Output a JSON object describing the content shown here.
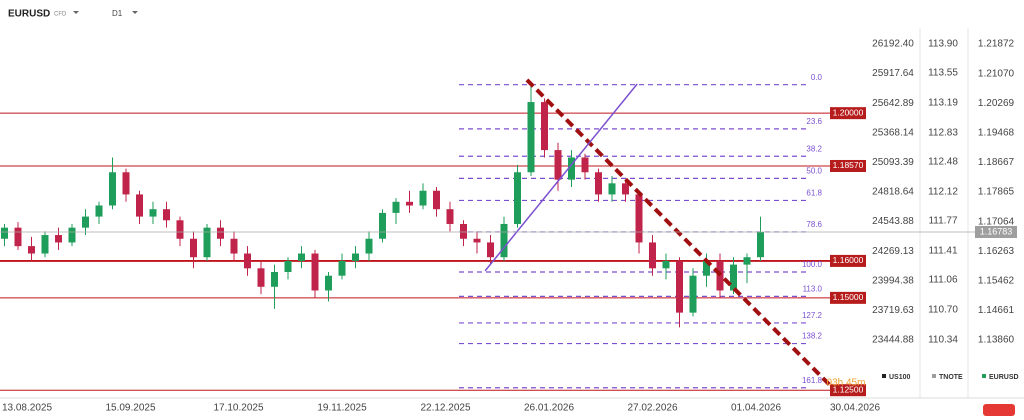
{
  "chart_data": {
    "type": "candlestick",
    "symbol": "EURUSD",
    "instrument_type": "CFD",
    "timeframe": "D1",
    "up_color": "#1e9e5a",
    "down_color": "#c0244a",
    "x": [
      -5,
      -2,
      1,
      4,
      7,
      10,
      13,
      16,
      19,
      22,
      25,
      28,
      31,
      34,
      37,
      40,
      43,
      46,
      49,
      52,
      55,
      58,
      61,
      64,
      67,
      70,
      73,
      76,
      79,
      82,
      85,
      88,
      91,
      94,
      97,
      100,
      103,
      106,
      109,
      112,
      115,
      118,
      121,
      124,
      127,
      130,
      133,
      136,
      139,
      142,
      145,
      148,
      151,
      154,
      157,
      160,
      163
    ],
    "open": [
      1.166,
      1.169,
      1.164,
      1.162,
      1.167,
      1.165,
      1.169,
      1.172,
      1.175,
      1.184,
      1.178,
      1.172,
      1.174,
      1.171,
      1.166,
      1.161,
      1.169,
      1.166,
      1.162,
      1.158,
      1.153,
      1.157,
      1.16,
      1.162,
      1.152,
      1.156,
      1.16,
      1.162,
      1.166,
      1.173,
      1.176,
      1.175,
      1.179,
      1.174,
      1.17,
      1.166,
      1.165,
      1.161,
      1.17,
      1.184,
      1.203,
      1.19,
      1.182,
      1.188,
      1.184,
      1.178,
      1.181,
      1.178,
      1.165,
      1.158,
      1.16,
      1.146,
      1.156,
      1.16,
      1.152,
      1.159,
      1.161
    ],
    "high": [
      1.17,
      1.1705,
      1.1665,
      1.168,
      1.169,
      1.17,
      1.174,
      1.176,
      1.188,
      1.185,
      1.179,
      1.176,
      1.176,
      1.172,
      1.168,
      1.17,
      1.171,
      1.168,
      1.164,
      1.16,
      1.159,
      1.161,
      1.164,
      1.163,
      1.157,
      1.162,
      1.164,
      1.168,
      1.174,
      1.177,
      1.179,
      1.181,
      1.18,
      1.176,
      1.171,
      1.168,
      1.167,
      1.172,
      1.186,
      1.208,
      1.204,
      1.192,
      1.19,
      1.189,
      1.185,
      1.183,
      1.182,
      1.179,
      1.167,
      1.162,
      1.161,
      1.158,
      1.162,
      1.162,
      1.161,
      1.162,
      1.172
    ],
    "low": [
      1.164,
      1.163,
      1.16,
      1.161,
      1.163,
      1.164,
      1.167,
      1.17,
      1.174,
      1.176,
      1.17,
      1.17,
      1.169,
      1.164,
      1.158,
      1.16,
      1.164,
      1.16,
      1.156,
      1.151,
      1.147,
      1.155,
      1.158,
      1.15,
      1.149,
      1.155,
      1.158,
      1.16,
      1.165,
      1.17,
      1.173,
      1.174,
      1.172,
      1.168,
      1.164,
      1.162,
      1.159,
      1.16,
      1.169,
      1.183,
      1.188,
      1.179,
      1.18,
      1.182,
      1.176,
      1.176,
      1.176,
      1.162,
      1.156,
      1.155,
      1.142,
      1.145,
      1.153,
      1.15,
      1.151,
      1.154,
      1.16
    ],
    "close": [
      1.169,
      1.164,
      1.162,
      1.167,
      1.165,
      1.169,
      1.172,
      1.175,
      1.184,
      1.178,
      1.172,
      1.174,
      1.171,
      1.166,
      1.161,
      1.169,
      1.166,
      1.162,
      1.158,
      1.153,
      1.157,
      1.16,
      1.162,
      1.152,
      1.156,
      1.16,
      1.162,
      1.166,
      1.173,
      1.176,
      1.175,
      1.179,
      1.174,
      1.17,
      1.166,
      1.165,
      1.161,
      1.17,
      1.184,
      1.203,
      1.19,
      1.182,
      1.188,
      1.184,
      1.178,
      1.181,
      1.178,
      1.165,
      1.158,
      1.16,
      1.146,
      1.156,
      1.16,
      1.152,
      1.159,
      1.161,
      1.16783
    ],
    "xlim": [
      -6,
      186
    ],
    "xticks": [
      {
        "value": 0,
        "label": "13.08.2025"
      },
      {
        "value": 23,
        "label": "15.09.2025"
      },
      {
        "value": 47,
        "label": "17.10.2025"
      },
      {
        "value": 70,
        "label": "19.11.2025"
      },
      {
        "value": 93,
        "label": "22.12.2025"
      },
      {
        "value": 116,
        "label": "26.01.2026"
      },
      {
        "value": 139,
        "label": "27.02.2026"
      },
      {
        "value": 162,
        "label": "01.04.2026"
      },
      {
        "value": 184,
        "label": "30.04.2026"
      }
    ],
    "ylim": [
      1.12289,
      1.22251
    ],
    "yticks": [
      1.21872,
      {
        "value": 1.2107,
        "label": "1.21070"
      },
      1.20269,
      1.19468,
      1.18667,
      1.17865,
      1.17064,
      1.16263,
      1.15462,
      1.14661,
      {
        "value": 1.1386,
        "label": "1.13860"
      }
    ],
    "y2lim": [
      22906.52,
      26322.35
    ],
    "y2ticks": [
      {
        "value": 26192.4,
        "label": "26192.40"
      },
      25917.64,
      25642.89,
      25368.14,
      25093.39,
      24818.64,
      24543.88,
      24269.13,
      23994.38,
      23719.63,
      23444.88
    ],
    "y3lim": [
      109.642,
      114.068
    ],
    "y3ticks": [
      {
        "value": 113.9,
        "label": "113.90"
      },
      113.55,
      113.19,
      112.83,
      112.48,
      112.12,
      111.77,
      111.41,
      111.06,
      {
        "value": 110.7,
        "label": "110.70"
      },
      110.34
    ],
    "legend": [
      {
        "name": "US100",
        "color": "#222222"
      },
      {
        "name": "TNOTE",
        "color": "#9e9e9e"
      },
      {
        "name": "EURUSD",
        "color": "#1e9e5a"
      }
    ],
    "levels": [
      {
        "value": 1.2,
        "label": "1.20000"
      },
      {
        "value": 1.1857,
        "label": "1.18570"
      },
      {
        "value": 1.16,
        "label": "1.16000"
      },
      {
        "value": 1.15,
        "label": "1.15000"
      },
      {
        "value": 1.125,
        "label": "1.12500"
      }
    ],
    "level_color": "#c0141c",
    "last_price": {
      "value": 1.16783,
      "label": "1.16783"
    },
    "fibonacci": {
      "color": "#7b4fd0",
      "high": 1.2077,
      "low": 1.157,
      "x": [
        96,
        178
      ],
      "levels": [
        {
          "value": 0,
          "label": "0.0"
        },
        23.6,
        38.2,
        {
          "value": 50,
          "label": "50.0"
        },
        61.8,
        78.6,
        {
          "value": 100,
          "label": "100.0"
        },
        {
          "value": 113,
          "label": "113.0"
        },
        127.2,
        138.2,
        161.8
      ]
    },
    "trendlines": [
      {
        "color": "#a01010",
        "x": [
          111.1,
          178.4
        ],
        "y": [
          1.209,
          1.1264
        ]
      },
      {
        "color": "#7b4fd0",
        "x": [
          101.8,
          135.6
        ],
        "y": [
          1.1573,
          1.2079
        ]
      }
    ],
    "annotation": "03h 45m"
  }
}
